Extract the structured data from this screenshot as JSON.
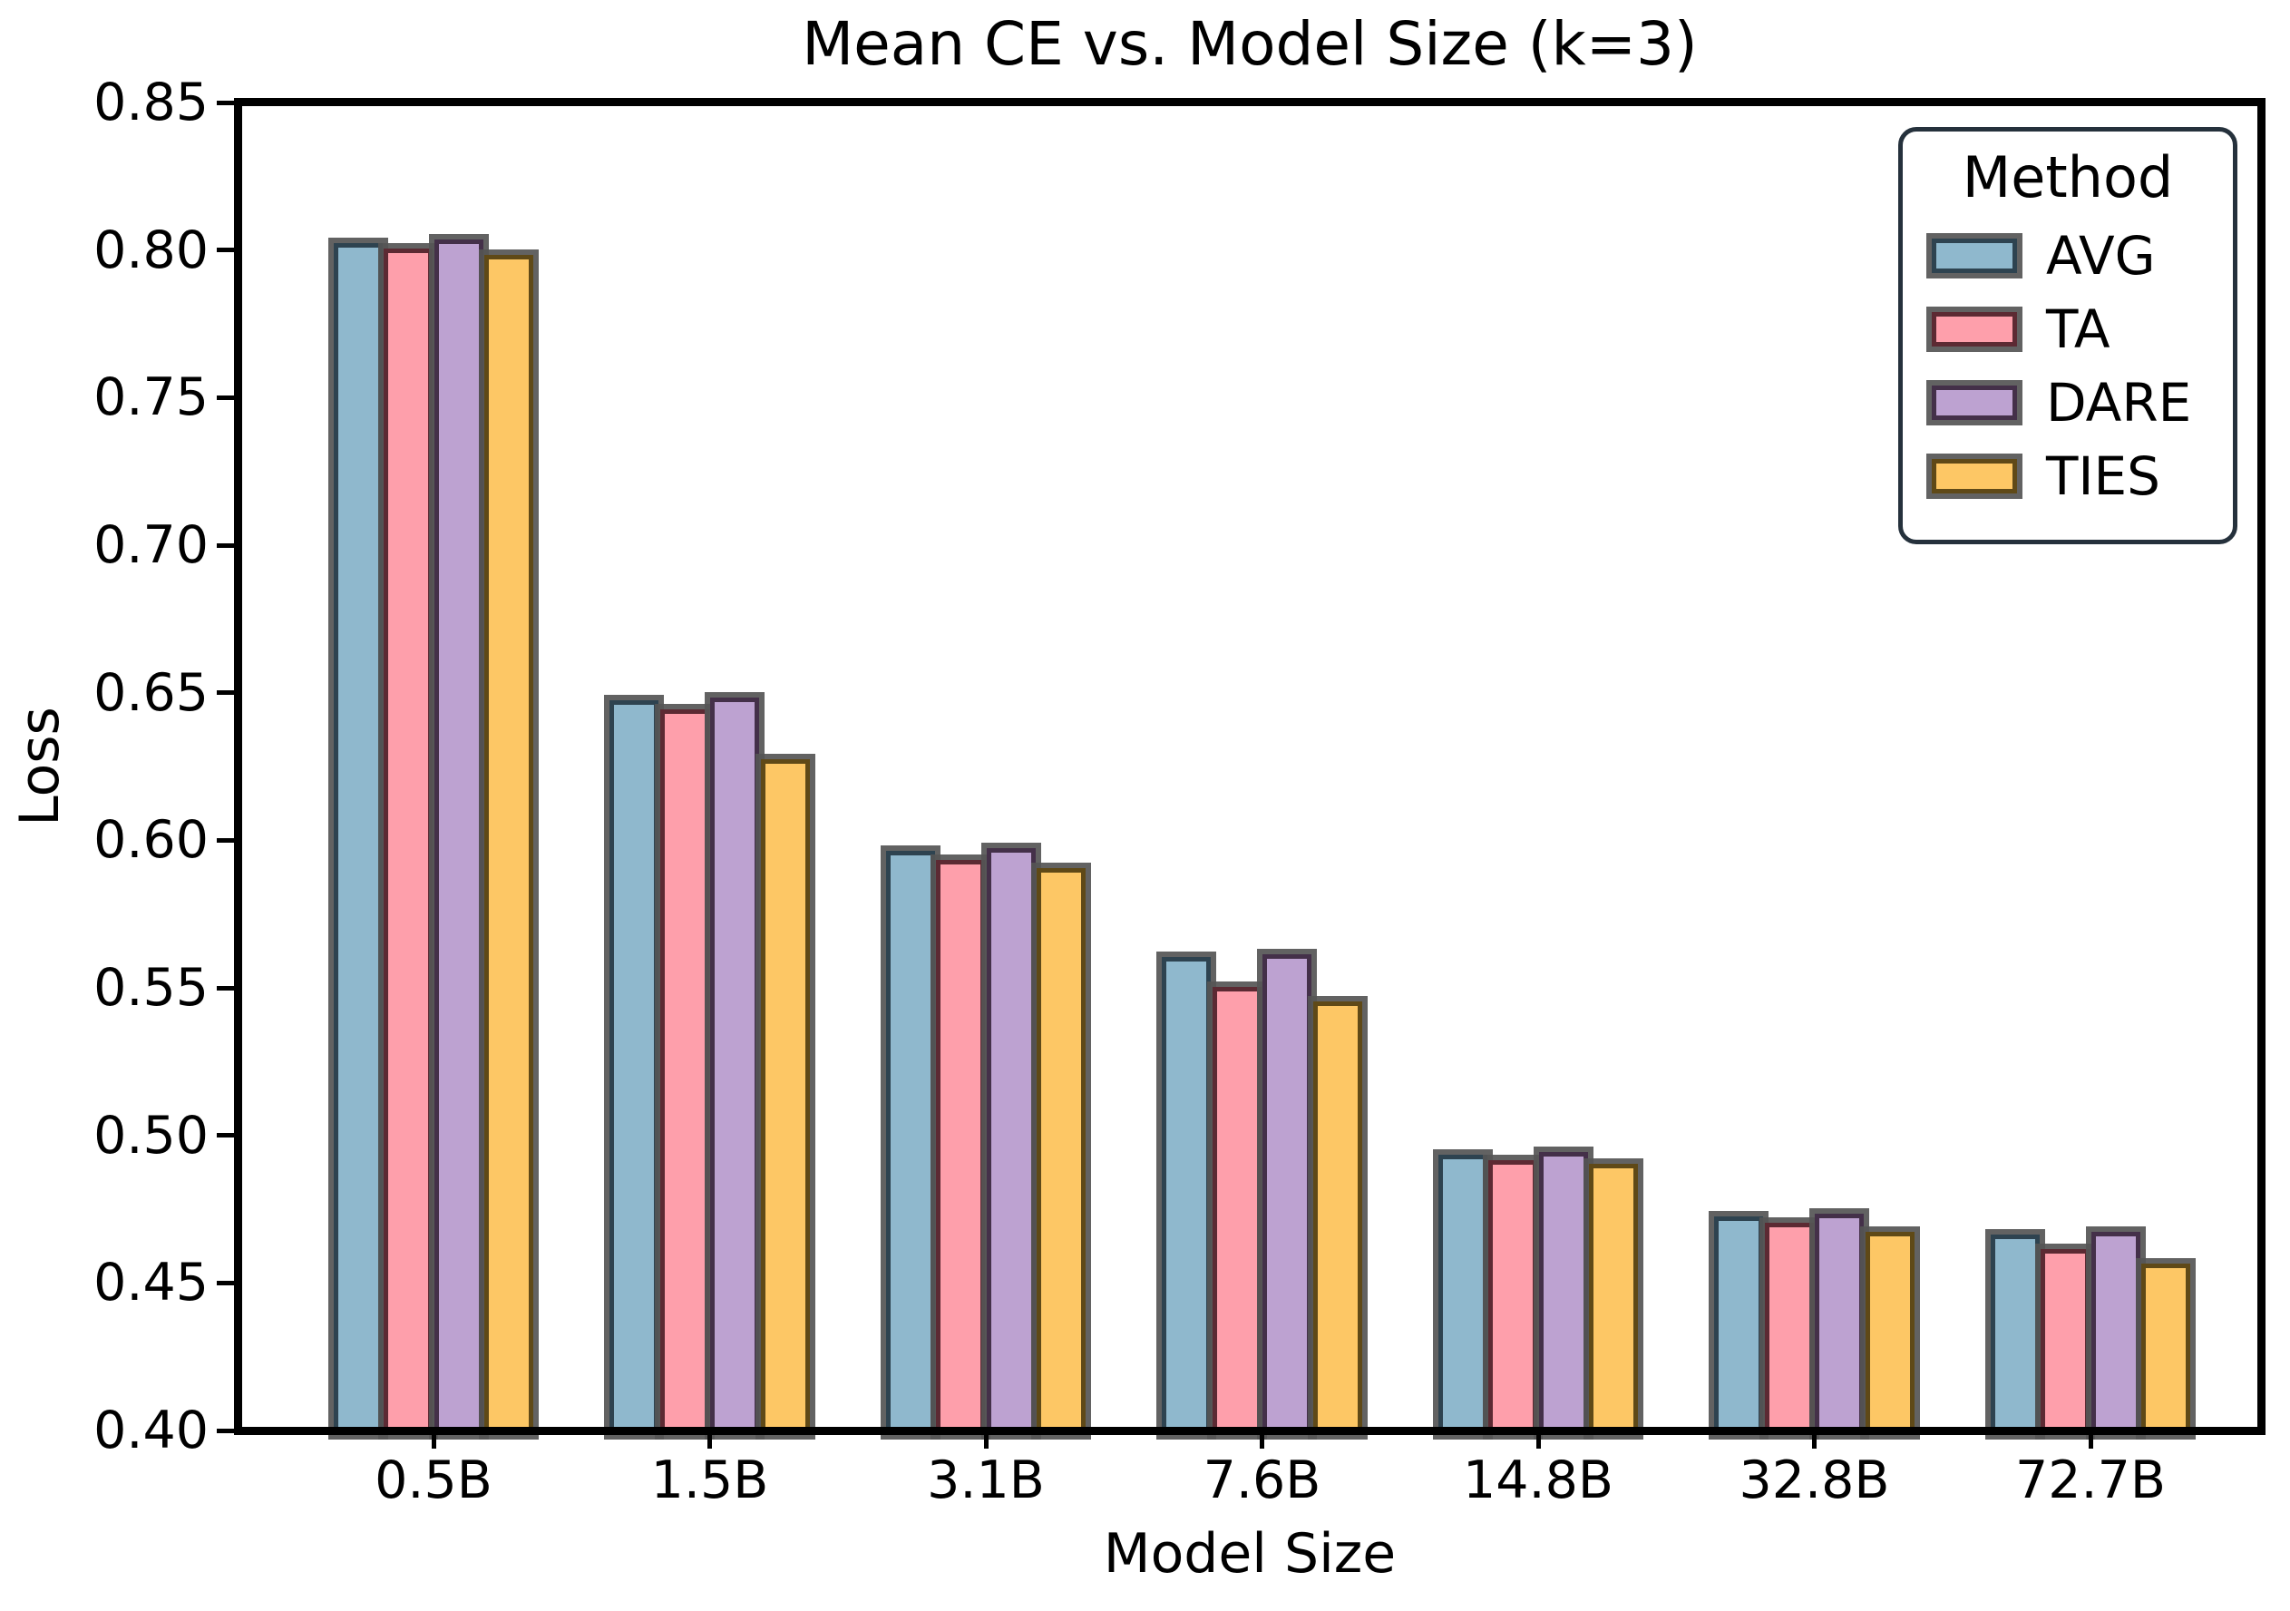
{
  "title": "Mean CE vs. Model Size (k=3)",
  "axes": {
    "x_label": "Model Size",
    "y_label": "Loss",
    "x_ticks": [
      "0.5B",
      "1.5B",
      "3.1B",
      "7.6B",
      "14.8B",
      "32.8B",
      "72.7B"
    ],
    "y_ticks": [
      "0.85",
      "0.80",
      "0.75",
      "0.70",
      "0.65",
      "0.60",
      "0.55",
      "0.50",
      "0.45",
      "0.40"
    ]
  },
  "legend": {
    "title": "Method",
    "position": "upper right",
    "entries": [
      {
        "label": "AVG",
        "fill": "#8fb8cd",
        "edge": "#2e4350"
      },
      {
        "label": "TA",
        "fill": "#fe9fab",
        "edge": "#5c2a33"
      },
      {
        "label": "DARE",
        "fill": "#bda2d1",
        "edge": "#443049"
      },
      {
        "label": "TIES",
        "fill": "#fdc765",
        "edge": "#5f4917"
      }
    ]
  },
  "chart_data": {
    "type": "bar",
    "title": "Mean CE vs. Model Size (k=3)",
    "xlabel": "Model Size",
    "ylabel": "Loss",
    "categories": [
      "0.5B",
      "1.5B",
      "3.1B",
      "7.6B",
      "14.8B",
      "32.8B",
      "72.7B"
    ],
    "series": [
      {
        "name": "AVG",
        "values": [
          0.8,
          0.645,
          0.594,
          0.558,
          0.491,
          0.47,
          0.464
        ]
      },
      {
        "name": "TA",
        "values": [
          0.798,
          0.642,
          0.591,
          0.548,
          0.489,
          0.468,
          0.459
        ]
      },
      {
        "name": "DARE",
        "values": [
          0.801,
          0.646,
          0.595,
          0.559,
          0.492,
          0.471,
          0.465
        ]
      },
      {
        "name": "TIES",
        "values": [
          0.796,
          0.625,
          0.588,
          0.543,
          0.488,
          0.465,
          0.454
        ]
      }
    ],
    "ylim": [
      0.4,
      0.85
    ],
    "ytick_step": 0.05,
    "grid": false,
    "legend_title": "Method",
    "legend_position": "upper right",
    "bar_edge_outer_color": "#555555"
  }
}
